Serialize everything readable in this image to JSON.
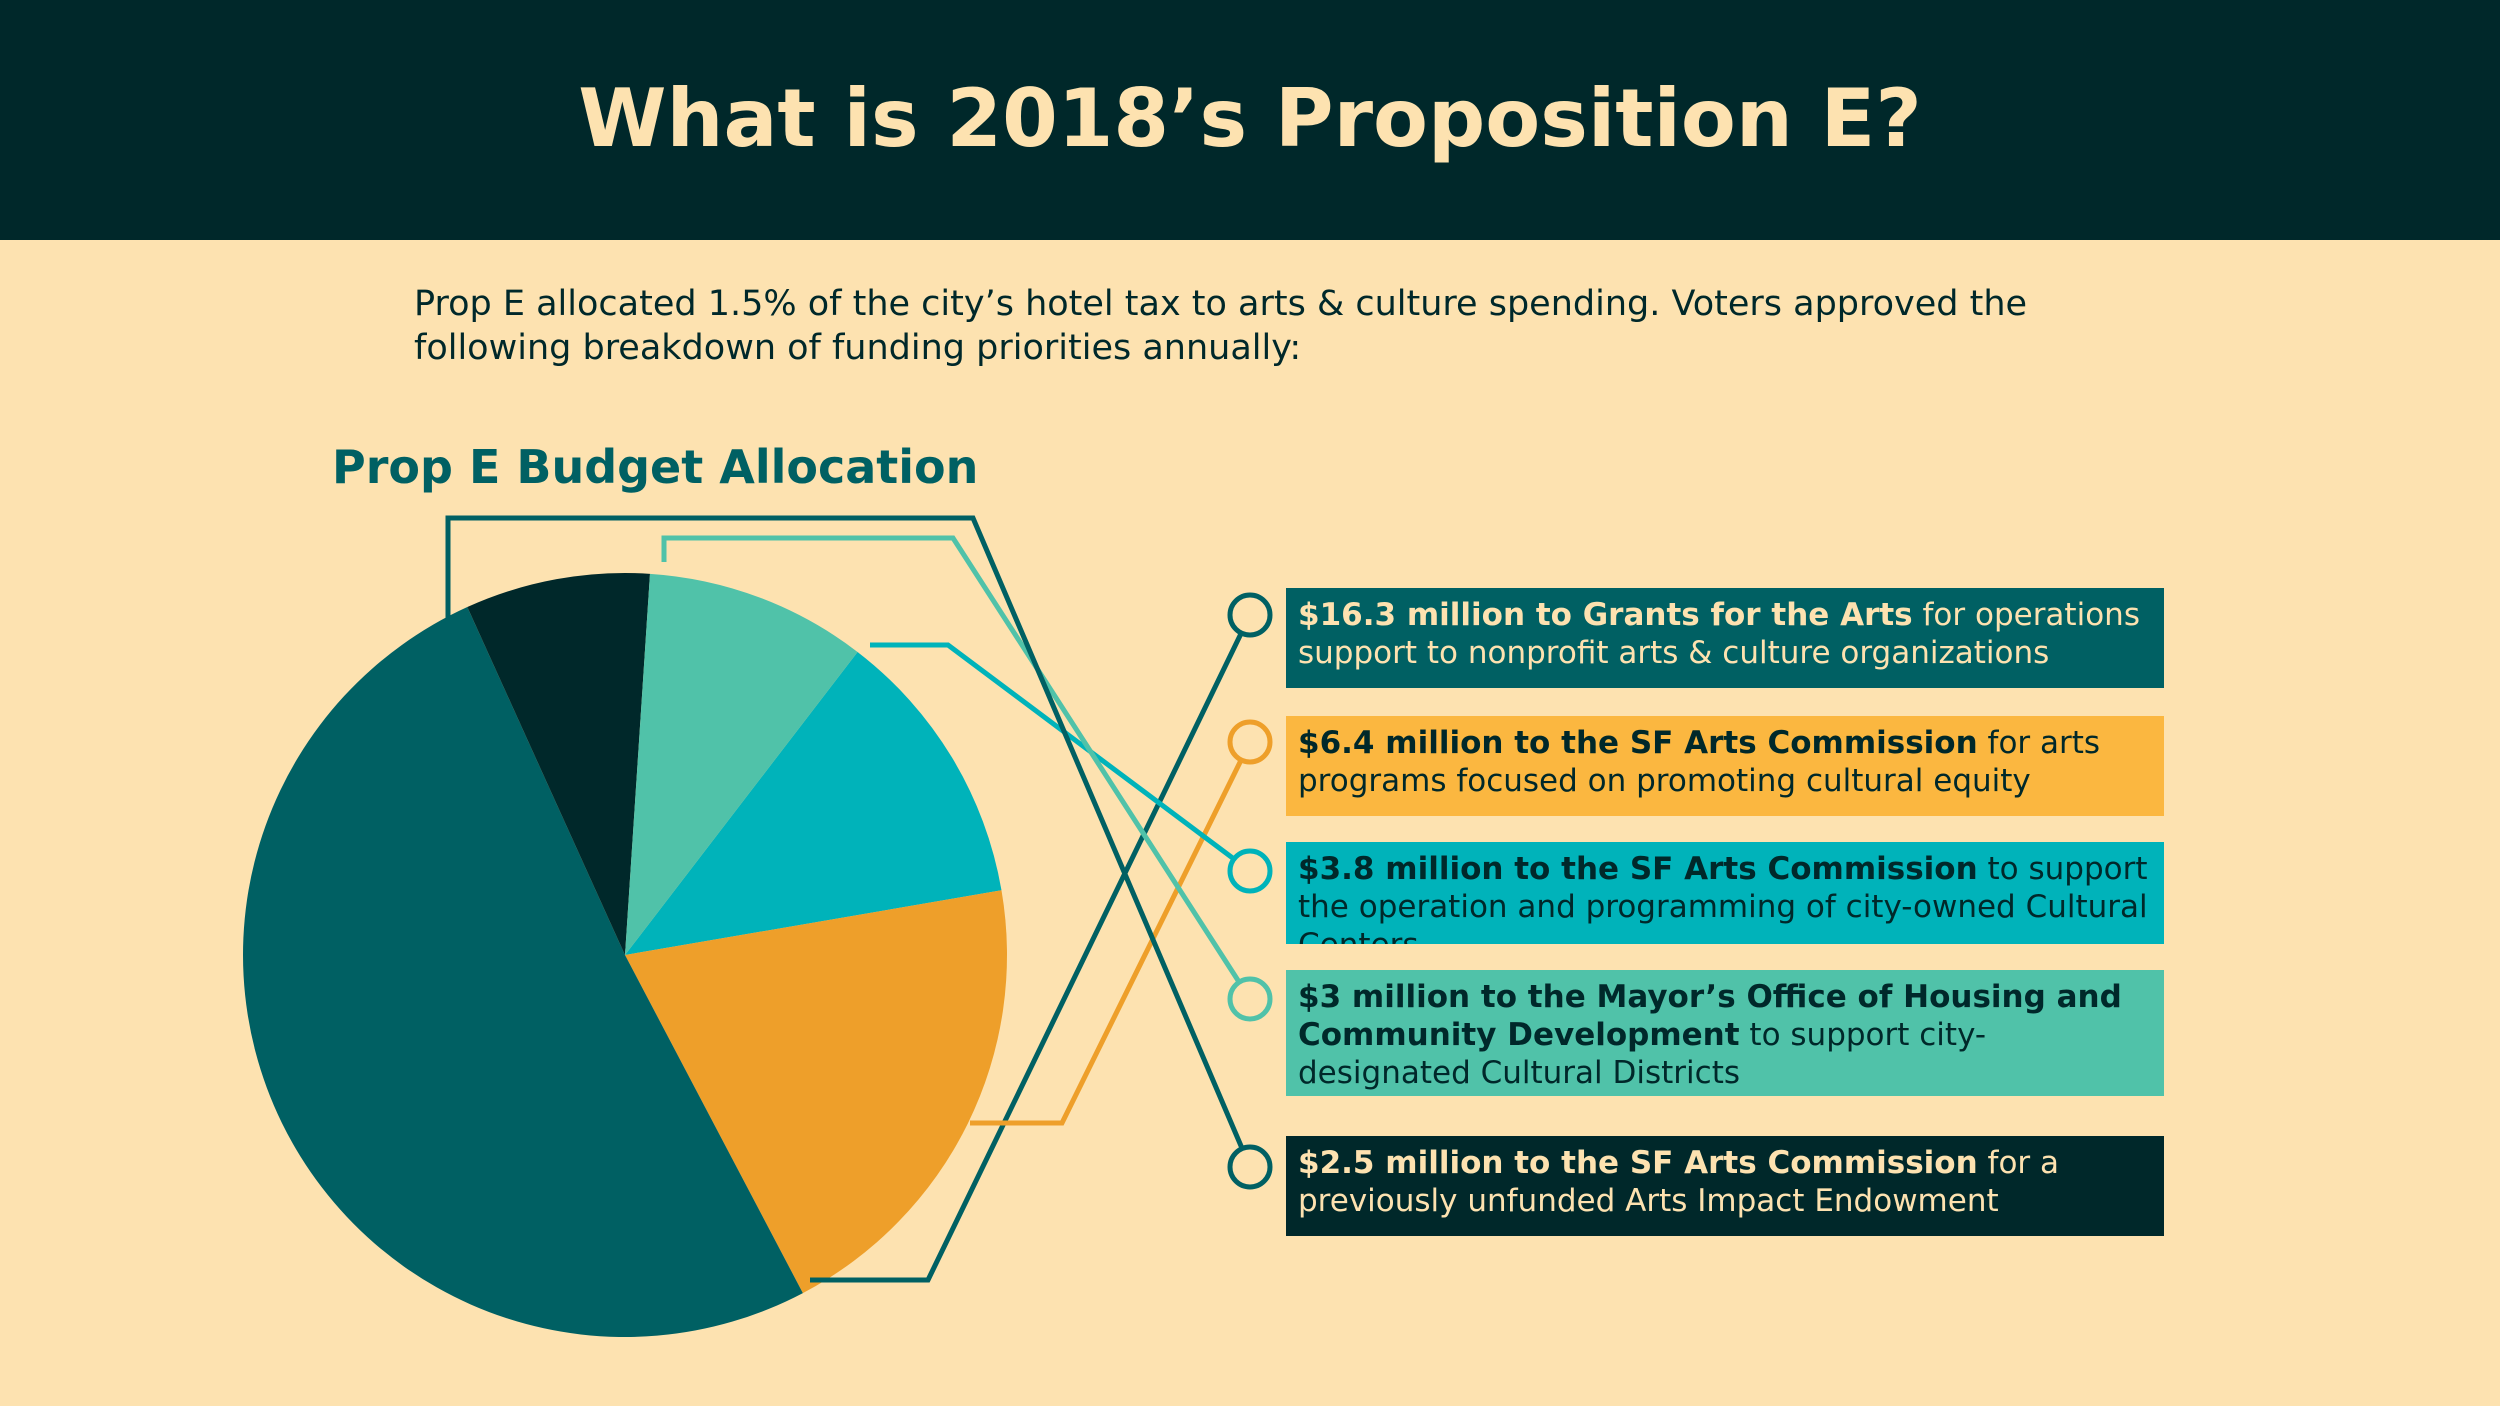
{
  "header": {
    "title": "What is 2018’s Proposition E?"
  },
  "intro": "Prop E allocated 1.5% of the city’s hotel tax to arts & culture spending. Voters approved the following breakdown of funding priorities annually:",
  "chart_data": {
    "type": "pie",
    "title": "Prop E Budget Allocation",
    "unit": "million",
    "slices": [
      {
        "label": "Grants for the Arts",
        "value": 16.3,
        "color": "#006063",
        "bold": "$16.3 million to Grants for the Arts",
        "rest": " for operations support to nonprofit arts & culture organizations"
      },
      {
        "label": "SF Arts Commission – cultural equity",
        "value": 6.4,
        "color": "#EE9F2A",
        "bold": "$6.4 million to the SF Arts Commission",
        "rest": " for arts programs focused on promoting cultural equity"
      },
      {
        "label": "SF Arts Commission – Cultural Centers",
        "value": 3.8,
        "color": "#00B3BA",
        "bold": "$3.8 million to the SF Arts Commission",
        "rest": " to support the operation and programming of city-owned Cultural Centers"
      },
      {
        "label": "Mayor’s Office of Housing and Community Development",
        "value": 3.0,
        "color": "#50C2A9",
        "bold": "$3 million to the Mayor’s Office of Housing and Community Development",
        "rest": " to support city-designated Cultural Districts"
      },
      {
        "label": "SF Arts Commission – Arts Impact Endowment",
        "value": 2.5,
        "color": "#00282A",
        "bold": "$2.5 million to the SF Arts Commission",
        "rest": " for a previously unfunded Arts Impact Endowment"
      }
    ]
  },
  "colors": {
    "background": "#FDE2B0",
    "header": "#00282A",
    "title_text": "#FDE2B0",
    "chart_title": "#006063",
    "line_teal_dark": "#006063",
    "line_orange": "#EE9F2A",
    "line_cyan": "#00B3BA",
    "line_mint": "#50C2A9"
  }
}
